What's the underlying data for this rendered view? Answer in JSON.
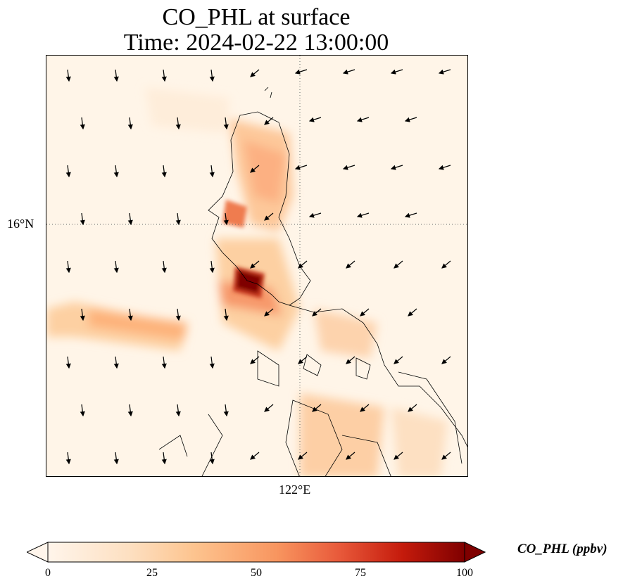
{
  "map": {
    "title_line1": "CO_PHL at surface",
    "title_line2": "Time: 2024-02-22 13:00:00",
    "lat_tick": "16°N",
    "lon_tick": "122°E",
    "variable": "CO_PHL",
    "units": "ppbv",
    "colorbar_label": "CO_PHL (ppbv)",
    "colorbar_ticks": [
      "0",
      "25",
      "50",
      "75",
      "100"
    ],
    "colorbar_range": [
      0,
      100
    ],
    "colormap": [
      "#fff5eb",
      "#fdd8b0",
      "#fdae6b",
      "#f16913",
      "#d94801",
      "#a63603",
      "#7f0000"
    ],
    "colorbar_extend": "both",
    "coastline_color": "#000000",
    "gridline_style": "dotted",
    "wind_arrow_color": "#000000"
  }
}
